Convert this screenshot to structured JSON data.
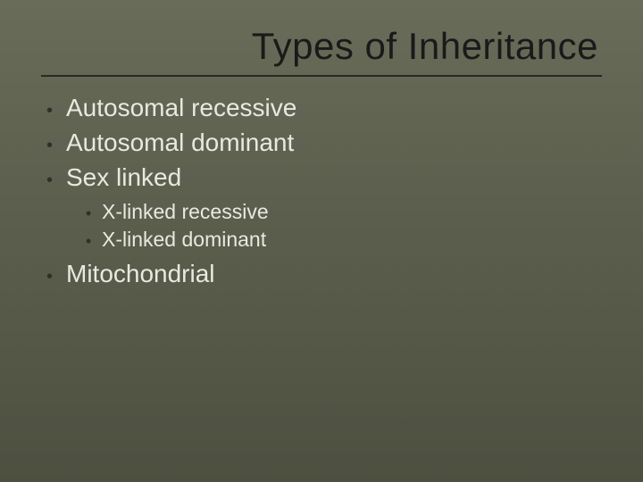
{
  "slide": {
    "title": "Types of Inheritance",
    "background_gradient_top": "#6a6c5a",
    "background_gradient_bottom": "#4d4f40",
    "title_color": "#1a1a1a",
    "title_fontsize": 42,
    "rule_color": "#2a2a24",
    "main_text_color": "#e8e9e0",
    "main_text_fontsize": 28,
    "sub_text_color": "#e8e9e0",
    "sub_text_fontsize": 23,
    "bullet_color": "#30302a",
    "items": [
      {
        "label": "Autosomal recessive"
      },
      {
        "label": "Autosomal dominant"
      },
      {
        "label": "Sex linked",
        "sub": [
          {
            "label": "X-linked recessive"
          },
          {
            "label": "X-linked dominant"
          }
        ]
      },
      {
        "label": "Mitochondrial"
      }
    ]
  }
}
